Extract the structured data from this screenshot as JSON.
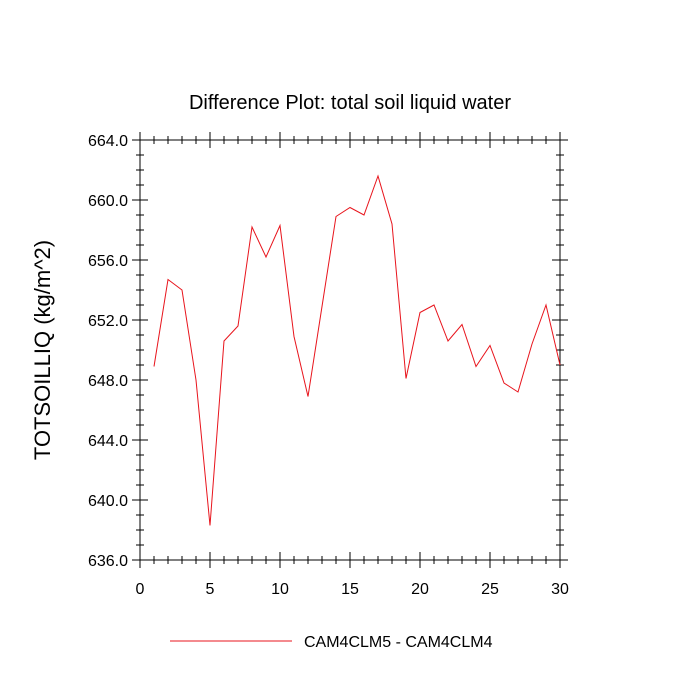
{
  "chart_data": {
    "type": "line",
    "title": "Difference Plot: total soil liquid water",
    "xlabel": "",
    "ylabel": "TOTSOILLIQ  (kg/m^2)",
    "xlim": [
      0,
      30
    ],
    "ylim": [
      636,
      664
    ],
    "x_ticks": [
      "0",
      "5",
      "10",
      "15",
      "20",
      "25",
      "30"
    ],
    "y_ticks": [
      "636.0",
      "640.0",
      "644.0",
      "648.0",
      "652.0",
      "656.0",
      "660.0",
      "664.0"
    ],
    "grid": false,
    "legend_position": "bottom",
    "series": [
      {
        "name": "CAM4CLM5 - CAM4CLM4",
        "color": "#e8141c",
        "x": [
          1,
          2,
          3,
          4,
          5,
          6,
          7,
          8,
          9,
          10,
          11,
          12,
          13,
          14,
          15,
          16,
          17,
          18,
          19,
          20,
          21,
          22,
          23,
          24,
          25,
          26,
          27,
          28,
          29,
          30
        ],
        "y": [
          648.9,
          654.7,
          654.0,
          648.0,
          638.3,
          650.6,
          651.6,
          658.2,
          656.2,
          658.3,
          650.9,
          646.9,
          652.9,
          658.9,
          659.5,
          659.0,
          661.6,
          658.4,
          648.1,
          652.5,
          653.0,
          650.6,
          651.7,
          648.9,
          650.3,
          647.8,
          647.2,
          650.4,
          653.0,
          649.0
        ]
      }
    ]
  }
}
